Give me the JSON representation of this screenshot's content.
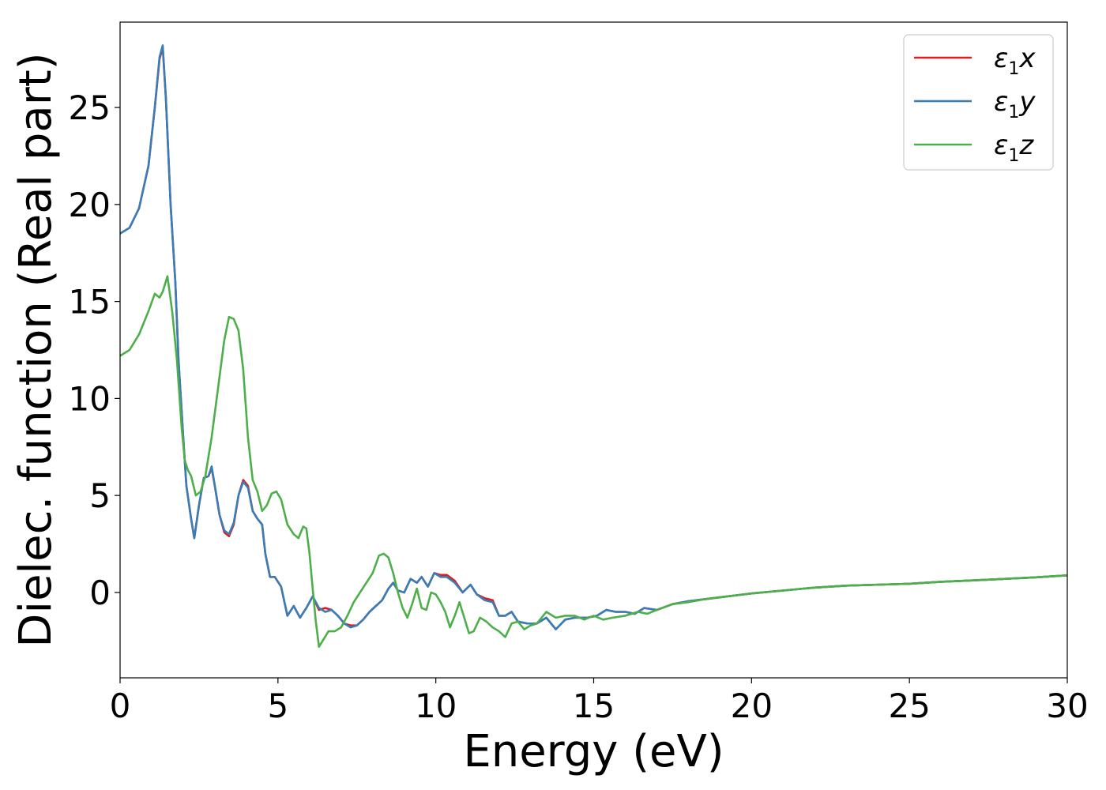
{
  "chart_data": {
    "type": "line",
    "xlabel": "Energy (eV)",
    "ylabel": "Dielec. function (Real part)",
    "xlim": [
      0,
      30
    ],
    "ylim": [
      -4.4,
      29.4
    ],
    "xticks": [
      0,
      5,
      10,
      15,
      20,
      25,
      30
    ],
    "xtick_labels": [
      "0",
      "5",
      "10",
      "15",
      "20",
      "25",
      "30"
    ],
    "yticks": [
      0,
      5,
      10,
      15,
      20,
      25
    ],
    "ytick_labels": [
      "0",
      "5",
      "10",
      "15",
      "20",
      "25"
    ],
    "grid": false,
    "legend_position": "top-right",
    "series": [
      {
        "name": "ε₁x",
        "legend": {
          "symbol": "ε",
          "sub": "1",
          "var": "x"
        },
        "color": "#e41a1c",
        "points": [
          [
            0,
            18.5
          ],
          [
            0.3,
            18.8
          ],
          [
            0.6,
            19.8
          ],
          [
            0.9,
            22.0
          ],
          [
            1.1,
            25.0
          ],
          [
            1.25,
            27.5
          ],
          [
            1.35,
            28.1
          ],
          [
            1.45,
            25.5
          ],
          [
            1.6,
            20.0
          ],
          [
            1.75,
            16.0
          ],
          [
            1.85,
            12.0
          ],
          [
            2.0,
            8.0
          ],
          [
            2.1,
            5.5
          ],
          [
            2.25,
            3.8
          ],
          [
            2.35,
            2.8
          ],
          [
            2.5,
            4.5
          ],
          [
            2.65,
            5.9
          ],
          [
            2.8,
            6.0
          ],
          [
            2.9,
            6.4
          ],
          [
            3.0,
            5.5
          ],
          [
            3.15,
            4.0
          ],
          [
            3.3,
            3.1
          ],
          [
            3.45,
            2.9
          ],
          [
            3.6,
            3.5
          ],
          [
            3.75,
            5.0
          ],
          [
            3.9,
            5.8
          ],
          [
            4.05,
            5.5
          ],
          [
            4.2,
            4.2
          ],
          [
            4.35,
            3.8
          ],
          [
            4.5,
            3.5
          ],
          [
            4.6,
            2.0
          ],
          [
            4.75,
            0.8
          ],
          [
            4.9,
            0.8
          ],
          [
            5.1,
            0.3
          ],
          [
            5.3,
            -1.2
          ],
          [
            5.5,
            -0.7
          ],
          [
            5.7,
            -1.3
          ],
          [
            5.9,
            -0.8
          ],
          [
            6.1,
            -0.2
          ],
          [
            6.3,
            -0.9
          ],
          [
            6.5,
            -0.8
          ],
          [
            6.7,
            -0.9
          ],
          [
            6.9,
            -1.2
          ],
          [
            7.1,
            -1.6
          ],
          [
            7.3,
            -1.7
          ],
          [
            7.5,
            -1.7
          ],
          [
            7.7,
            -1.4
          ],
          [
            7.9,
            -1.0
          ],
          [
            8.1,
            -0.7
          ],
          [
            8.3,
            -0.4
          ],
          [
            8.5,
            0.2
          ],
          [
            8.65,
            0.5
          ],
          [
            8.8,
            0.1
          ],
          [
            9.0,
            0.0
          ],
          [
            9.2,
            0.7
          ],
          [
            9.4,
            0.5
          ],
          [
            9.55,
            0.8
          ],
          [
            9.75,
            0.3
          ],
          [
            9.95,
            1.0
          ],
          [
            10.15,
            0.9
          ],
          [
            10.35,
            0.9
          ],
          [
            10.6,
            0.6
          ],
          [
            10.85,
            0.0
          ],
          [
            11.1,
            0.4
          ],
          [
            11.3,
            -0.1
          ],
          [
            11.55,
            -0.3
          ],
          [
            11.8,
            -0.4
          ],
          [
            12.0,
            -1.2
          ],
          [
            12.2,
            -1.2
          ],
          [
            12.4,
            -1.0
          ],
          [
            12.6,
            -1.5
          ],
          [
            12.9,
            -1.6
          ],
          [
            13.2,
            -1.6
          ],
          [
            13.5,
            -1.3
          ],
          [
            13.8,
            -1.9
          ],
          [
            14.1,
            -1.4
          ],
          [
            14.4,
            -1.3
          ],
          [
            14.8,
            -1.3
          ],
          [
            15.1,
            -1.2
          ],
          [
            15.4,
            -0.9
          ],
          [
            15.7,
            -1.0
          ],
          [
            16.0,
            -1.0
          ],
          [
            16.3,
            -1.1
          ],
          [
            16.6,
            -0.8
          ],
          [
            17.0,
            -0.9
          ],
          [
            17.5,
            -0.6
          ],
          [
            18.0,
            -0.45
          ],
          [
            18.5,
            -0.35
          ],
          [
            19.0,
            -0.25
          ],
          [
            19.5,
            -0.15
          ],
          [
            20.0,
            -0.05
          ],
          [
            21.0,
            0.1
          ],
          [
            22.0,
            0.25
          ],
          [
            23.0,
            0.35
          ],
          [
            24.0,
            0.4
          ],
          [
            25.0,
            0.45
          ],
          [
            26.0,
            0.55
          ],
          [
            27.0,
            0.62
          ],
          [
            28.0,
            0.7
          ],
          [
            29.0,
            0.78
          ],
          [
            30.0,
            0.88
          ]
        ]
      },
      {
        "name": "ε₁y",
        "legend": {
          "symbol": "ε",
          "sub": "1",
          "var": "y"
        },
        "color": "#377eb8",
        "points": [
          [
            0,
            18.5
          ],
          [
            0.3,
            18.8
          ],
          [
            0.6,
            19.8
          ],
          [
            0.9,
            22.0
          ],
          [
            1.1,
            25.0
          ],
          [
            1.25,
            27.6
          ],
          [
            1.35,
            28.2
          ],
          [
            1.45,
            25.5
          ],
          [
            1.6,
            20.0
          ],
          [
            1.75,
            16.0
          ],
          [
            1.85,
            12.0
          ],
          [
            2.0,
            8.0
          ],
          [
            2.1,
            5.5
          ],
          [
            2.25,
            3.8
          ],
          [
            2.35,
            2.8
          ],
          [
            2.5,
            4.5
          ],
          [
            2.65,
            5.9
          ],
          [
            2.8,
            6.0
          ],
          [
            2.9,
            6.5
          ],
          [
            3.0,
            5.5
          ],
          [
            3.15,
            4.0
          ],
          [
            3.3,
            3.2
          ],
          [
            3.45,
            3.0
          ],
          [
            3.6,
            3.6
          ],
          [
            3.75,
            5.0
          ],
          [
            3.9,
            5.7
          ],
          [
            4.05,
            5.4
          ],
          [
            4.2,
            4.2
          ],
          [
            4.35,
            3.8
          ],
          [
            4.5,
            3.5
          ],
          [
            4.6,
            2.0
          ],
          [
            4.75,
            0.8
          ],
          [
            4.9,
            0.8
          ],
          [
            5.1,
            0.3
          ],
          [
            5.3,
            -1.2
          ],
          [
            5.5,
            -0.7
          ],
          [
            5.7,
            -1.3
          ],
          [
            5.9,
            -0.8
          ],
          [
            6.1,
            -0.2
          ],
          [
            6.3,
            -0.8
          ],
          [
            6.5,
            -1.0
          ],
          [
            6.7,
            -0.9
          ],
          [
            6.9,
            -1.2
          ],
          [
            7.1,
            -1.6
          ],
          [
            7.3,
            -1.8
          ],
          [
            7.5,
            -1.7
          ],
          [
            7.7,
            -1.4
          ],
          [
            7.9,
            -1.0
          ],
          [
            8.1,
            -0.7
          ],
          [
            8.3,
            -0.4
          ],
          [
            8.5,
            0.2
          ],
          [
            8.65,
            0.5
          ],
          [
            8.8,
            0.1
          ],
          [
            9.0,
            0.0
          ],
          [
            9.2,
            0.7
          ],
          [
            9.4,
            0.5
          ],
          [
            9.55,
            0.8
          ],
          [
            9.75,
            0.3
          ],
          [
            9.95,
            1.0
          ],
          [
            10.15,
            0.8
          ],
          [
            10.35,
            0.8
          ],
          [
            10.6,
            0.5
          ],
          [
            10.85,
            0.0
          ],
          [
            11.1,
            0.4
          ],
          [
            11.3,
            -0.1
          ],
          [
            11.55,
            -0.4
          ],
          [
            11.8,
            -0.5
          ],
          [
            12.0,
            -1.2
          ],
          [
            12.2,
            -1.2
          ],
          [
            12.4,
            -1.0
          ],
          [
            12.6,
            -1.5
          ],
          [
            12.9,
            -1.6
          ],
          [
            13.2,
            -1.6
          ],
          [
            13.5,
            -1.3
          ],
          [
            13.8,
            -1.9
          ],
          [
            14.1,
            -1.4
          ],
          [
            14.4,
            -1.3
          ],
          [
            14.8,
            -1.3
          ],
          [
            15.1,
            -1.2
          ],
          [
            15.4,
            -0.9
          ],
          [
            15.7,
            -1.0
          ],
          [
            16.0,
            -1.0
          ],
          [
            16.3,
            -1.1
          ],
          [
            16.6,
            -0.8
          ],
          [
            17.0,
            -0.9
          ],
          [
            17.5,
            -0.6
          ],
          [
            18.0,
            -0.45
          ],
          [
            18.5,
            -0.35
          ],
          [
            19.0,
            -0.25
          ],
          [
            19.5,
            -0.15
          ],
          [
            20.0,
            -0.05
          ],
          [
            21.0,
            0.1
          ],
          [
            22.0,
            0.25
          ],
          [
            23.0,
            0.35
          ],
          [
            24.0,
            0.4
          ],
          [
            25.0,
            0.45
          ],
          [
            26.0,
            0.55
          ],
          [
            27.0,
            0.62
          ],
          [
            28.0,
            0.7
          ],
          [
            29.0,
            0.78
          ],
          [
            30.0,
            0.88
          ]
        ]
      },
      {
        "name": "ε₁z",
        "legend": {
          "symbol": "ε",
          "sub": "1",
          "var": "z"
        },
        "color": "#4daf4a",
        "points": [
          [
            0,
            12.2
          ],
          [
            0.3,
            12.5
          ],
          [
            0.6,
            13.3
          ],
          [
            0.9,
            14.5
          ],
          [
            1.1,
            15.4
          ],
          [
            1.25,
            15.2
          ],
          [
            1.35,
            15.5
          ],
          [
            1.5,
            16.3
          ],
          [
            1.65,
            14.5
          ],
          [
            1.8,
            12.0
          ],
          [
            1.95,
            8.5
          ],
          [
            2.05,
            6.8
          ],
          [
            2.15,
            6.3
          ],
          [
            2.25,
            6.0
          ],
          [
            2.4,
            5.0
          ],
          [
            2.55,
            5.2
          ],
          [
            2.7,
            6.0
          ],
          [
            2.9,
            8.0
          ],
          [
            3.1,
            10.5
          ],
          [
            3.3,
            13.0
          ],
          [
            3.45,
            14.2
          ],
          [
            3.6,
            14.1
          ],
          [
            3.75,
            13.5
          ],
          [
            3.9,
            11.5
          ],
          [
            4.05,
            8.0
          ],
          [
            4.2,
            5.8
          ],
          [
            4.35,
            5.2
          ],
          [
            4.5,
            4.2
          ],
          [
            4.65,
            4.5
          ],
          [
            4.8,
            5.1
          ],
          [
            4.95,
            5.2
          ],
          [
            5.1,
            4.8
          ],
          [
            5.3,
            3.5
          ],
          [
            5.5,
            3.0
          ],
          [
            5.65,
            2.8
          ],
          [
            5.8,
            3.4
          ],
          [
            5.9,
            3.3
          ],
          [
            6.0,
            2.0
          ],
          [
            6.1,
            0.2
          ],
          [
            6.2,
            -1.5
          ],
          [
            6.3,
            -2.8
          ],
          [
            6.45,
            -2.4
          ],
          [
            6.6,
            -2.0
          ],
          [
            6.8,
            -2.0
          ],
          [
            7.0,
            -1.8
          ],
          [
            7.2,
            -1.2
          ],
          [
            7.4,
            -0.5
          ],
          [
            7.6,
            0.0
          ],
          [
            7.8,
            0.5
          ],
          [
            8.0,
            1.0
          ],
          [
            8.2,
            1.9
          ],
          [
            8.35,
            2.0
          ],
          [
            8.5,
            1.8
          ],
          [
            8.65,
            1.0
          ],
          [
            8.8,
            0.0
          ],
          [
            8.95,
            -0.8
          ],
          [
            9.1,
            -1.3
          ],
          [
            9.25,
            -0.6
          ],
          [
            9.4,
            0.2
          ],
          [
            9.55,
            -0.8
          ],
          [
            9.7,
            -0.9
          ],
          [
            9.85,
            0.0
          ],
          [
            10.0,
            -0.1
          ],
          [
            10.15,
            -0.5
          ],
          [
            10.3,
            -1.0
          ],
          [
            10.45,
            -1.8
          ],
          [
            10.6,
            -1.2
          ],
          [
            10.75,
            -0.5
          ],
          [
            10.9,
            -1.3
          ],
          [
            11.05,
            -2.1
          ],
          [
            11.2,
            -2.0
          ],
          [
            11.4,
            -1.3
          ],
          [
            11.6,
            -1.5
          ],
          [
            11.8,
            -1.8
          ],
          [
            12.0,
            -2.0
          ],
          [
            12.2,
            -2.3
          ],
          [
            12.4,
            -1.6
          ],
          [
            12.6,
            -1.5
          ],
          [
            12.8,
            -1.9
          ],
          [
            13.0,
            -1.7
          ],
          [
            13.2,
            -1.6
          ],
          [
            13.5,
            -1.0
          ],
          [
            13.8,
            -1.3
          ],
          [
            14.1,
            -1.2
          ],
          [
            14.4,
            -1.2
          ],
          [
            14.7,
            -1.4
          ],
          [
            15.0,
            -1.2
          ],
          [
            15.3,
            -1.4
          ],
          [
            15.6,
            -1.3
          ],
          [
            16.0,
            -1.2
          ],
          [
            16.4,
            -1.0
          ],
          [
            16.7,
            -1.1
          ],
          [
            17.0,
            -0.9
          ],
          [
            17.5,
            -0.6
          ],
          [
            18.0,
            -0.5
          ],
          [
            18.5,
            -0.35
          ],
          [
            19.0,
            -0.25
          ],
          [
            19.5,
            -0.15
          ],
          [
            20.0,
            -0.05
          ],
          [
            21.0,
            0.1
          ],
          [
            22.0,
            0.25
          ],
          [
            23.0,
            0.35
          ],
          [
            24.0,
            0.4
          ],
          [
            25.0,
            0.45
          ],
          [
            26.0,
            0.55
          ],
          [
            27.0,
            0.62
          ],
          [
            28.0,
            0.7
          ],
          [
            29.0,
            0.78
          ],
          [
            30.0,
            0.88
          ]
        ]
      }
    ]
  }
}
